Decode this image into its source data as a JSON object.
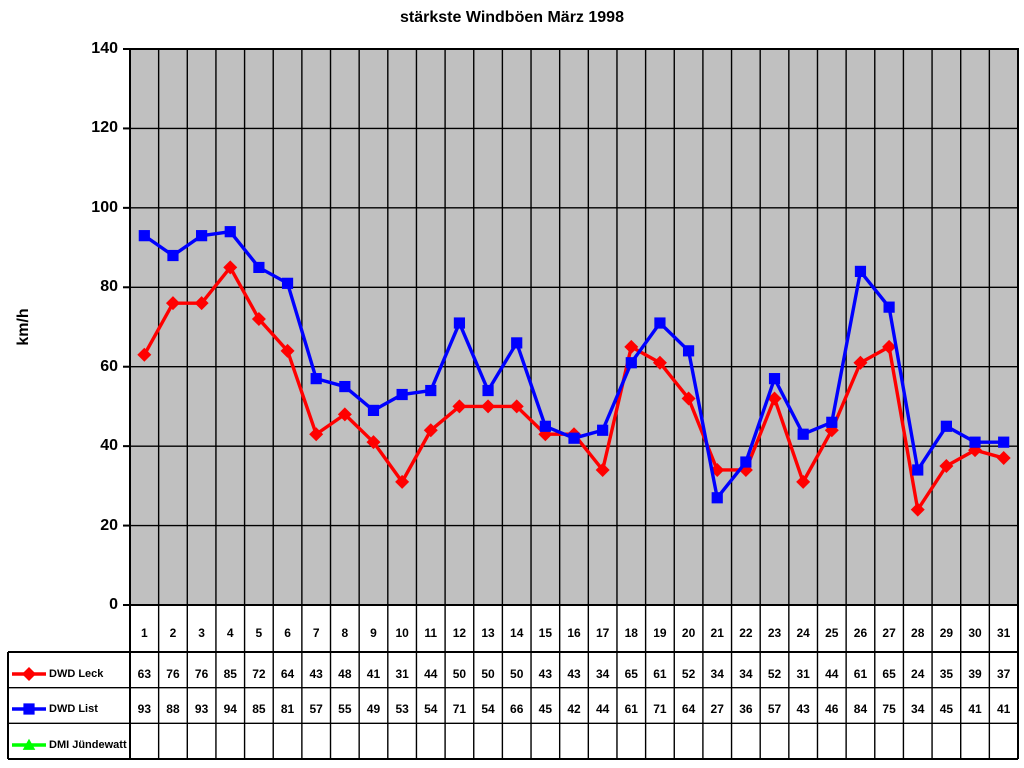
{
  "chart_data": {
    "type": "line",
    "title": "stärkste Windböen März 1998",
    "ylabel": "km/h",
    "xlabel": "",
    "ylim": [
      0,
      140
    ],
    "yticks": [
      0,
      20,
      40,
      60,
      80,
      100,
      120,
      140
    ],
    "grid": true,
    "plot_bg_color": "#C0C0C0",
    "gridline_color": "#000000",
    "legend_position": "table-left",
    "categories": [
      "1",
      "2",
      "3",
      "4",
      "5",
      "6",
      "7",
      "8",
      "9",
      "10",
      "11",
      "12",
      "13",
      "14",
      "15",
      "16",
      "17",
      "18",
      "19",
      "20",
      "21",
      "22",
      "23",
      "24",
      "25",
      "26",
      "27",
      "28",
      "29",
      "30",
      "31"
    ],
    "series": [
      {
        "name": "DWD Leck",
        "color": "#FF0000",
        "marker": "diamond",
        "values": [
          63,
          76,
          76,
          85,
          72,
          64,
          43,
          48,
          41,
          31,
          44,
          50,
          50,
          50,
          43,
          43,
          34,
          65,
          61,
          52,
          34,
          34,
          52,
          31,
          44,
          61,
          65,
          24,
          35,
          39,
          37
        ]
      },
      {
        "name": "DWD List",
        "color": "#0000FF",
        "marker": "square",
        "values": [
          93,
          88,
          93,
          94,
          85,
          81,
          57,
          55,
          49,
          53,
          54,
          71,
          54,
          66,
          45,
          42,
          44,
          61,
          71,
          64,
          27,
          36,
          57,
          43,
          46,
          84,
          75,
          34,
          45,
          41,
          41
        ]
      },
      {
        "name": "DMI Jündewatt",
        "color": "#00FF00",
        "marker": "triangle",
        "values": []
      }
    ]
  }
}
